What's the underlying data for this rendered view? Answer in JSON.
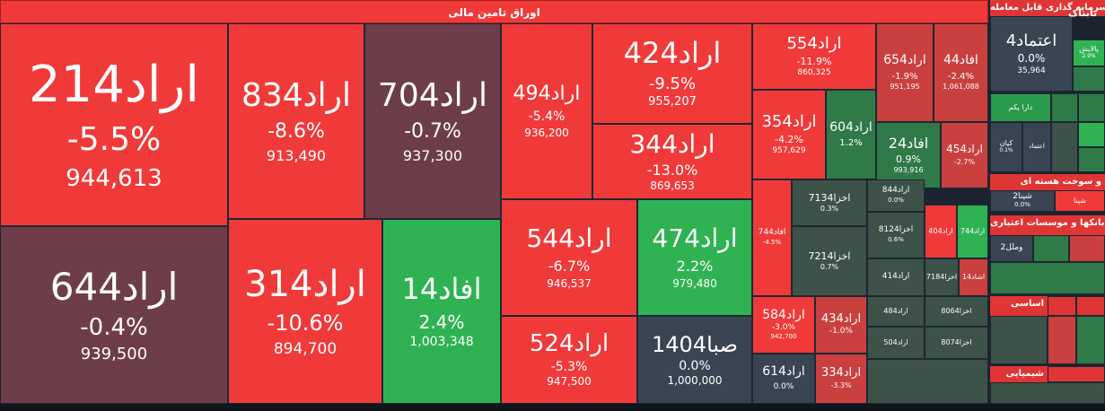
{
  "header": {
    "title": "اوراق تامین مالی"
  },
  "tiles": [
    {
      "id": "t214",
      "name": "اراد214",
      "pct": "-5.5%",
      "val": "944,613"
    },
    {
      "id": "t644",
      "name": "اراد644",
      "pct": "-0.4%",
      "val": "939,500"
    },
    {
      "id": "t834",
      "name": "اراد834",
      "pct": "-8.6%",
      "val": "913,490"
    },
    {
      "id": "t314",
      "name": "اراد314",
      "pct": "-10.6%",
      "val": "894,700"
    },
    {
      "id": "t704",
      "name": "اراد704",
      "pct": "-0.7%",
      "val": "937,300"
    },
    {
      "id": "t14",
      "name": "افاد14",
      "pct": "2.4%",
      "val": "1,003,348"
    },
    {
      "id": "t494",
      "name": "اراد494",
      "pct": "-5.4%",
      "val": "936,200"
    },
    {
      "id": "t424",
      "name": "اراد424",
      "pct": "-9.5%",
      "val": "955,207"
    },
    {
      "id": "t344",
      "name": "اراد344",
      "pct": "-13.0%",
      "val": "869,653"
    },
    {
      "id": "t544",
      "name": "اراد544",
      "pct": "-6.7%",
      "val": "946,537"
    },
    {
      "id": "t474",
      "name": "اراد474",
      "pct": "2.2%",
      "val": "979,480"
    },
    {
      "id": "t524",
      "name": "اراد524",
      "pct": "-5.3%",
      "val": "947,500"
    },
    {
      "id": "t1404",
      "name": "صبا1404",
      "pct": "0.0%",
      "val": "1,000,000"
    },
    {
      "id": "t554",
      "name": "اراد554",
      "pct": "-11.9%",
      "val": "860,325"
    },
    {
      "id": "t654",
      "name": "اراد654",
      "pct": "-1.9%",
      "val": "951,195"
    },
    {
      "id": "t44",
      "name": "افاد44",
      "pct": "-2.4%",
      "val": "1,061,088"
    },
    {
      "id": "t354",
      "name": "اراد354",
      "pct": "-4.2%",
      "val": "957,629"
    },
    {
      "id": "t604",
      "name": "اراد604",
      "pct": "1.2%",
      "val": ""
    },
    {
      "id": "t24",
      "name": "افاد24",
      "pct": "0.9%",
      "val": "993,916"
    },
    {
      "id": "t454",
      "name": "اراد454",
      "pct": "-2.7%",
      "val": ""
    },
    {
      "id": "t744",
      "name": "افاد744",
      "pct": "-4.5%",
      "val": ""
    },
    {
      "id": "t7134",
      "name": "اخزا7134",
      "pct": "0.3%",
      "val": ""
    },
    {
      "id": "t7214",
      "name": "اخزا7214",
      "pct": "0.7%",
      "val": ""
    },
    {
      "id": "t844",
      "name": "اراد844",
      "pct": "0.0%",
      "val": ""
    },
    {
      "id": "t8124",
      "name": "اخزا8124",
      "pct": "0.6%",
      "val": ""
    },
    {
      "id": "t414",
      "name": "اراد414",
      "pct": "",
      "val": ""
    },
    {
      "id": "t404",
      "name": "اراد404",
      "pct": "",
      "val": ""
    },
    {
      "id": "t744b",
      "name": "اراد744",
      "pct": "",
      "val": ""
    },
    {
      "id": "t7184",
      "name": "اخزا7184",
      "pct": "",
      "val": ""
    },
    {
      "id": "t14b",
      "name": "اشاد14",
      "pct": "",
      "val": ""
    },
    {
      "id": "t584",
      "name": "اراد584",
      "pct": "-3.0%",
      "val": "942,700"
    },
    {
      "id": "t434",
      "name": "اراد434",
      "pct": "-1.0%",
      "val": ""
    },
    {
      "id": "t484",
      "name": "اراد484",
      "pct": "",
      "val": ""
    },
    {
      "id": "t504",
      "name": "اراد504",
      "pct": "",
      "val": ""
    },
    {
      "id": "t8064",
      "name": "اخزا8064",
      "pct": "",
      "val": ""
    },
    {
      "id": "t8074",
      "name": "اخزا8074",
      "pct": "",
      "val": ""
    },
    {
      "id": "t614",
      "name": "اراد614",
      "pct": "0.0%",
      "val": ""
    },
    {
      "id": "t334",
      "name": "اراد334",
      "pct": "-3.3%",
      "val": ""
    }
  ],
  "side": {
    "sec1": "سرمایه گذاری قابل معامله",
    "etemad": {
      "name": "اعتماد4",
      "pct": "0.0%",
      "val": "35,964"
    },
    "palayesh": {
      "name": "پالایش",
      "pct": "2.9%"
    },
    "dara": "دارا یکم",
    "kian": {
      "name": "کیان",
      "pct": "0.1%"
    },
    "etemad2": "اعتماد",
    "sec2": "و سوخت هسته ای",
    "shepna2": {
      "name": "شپنا2",
      "pct": "0.0%"
    },
    "shepna": "شپنا",
    "sec3": "بانکها و موسسات اعتباری",
    "vmelal2": "وملل2",
    "sec4": "اساسی",
    "sec5": "شیمیایی",
    "logo": "تابناک"
  }
}
